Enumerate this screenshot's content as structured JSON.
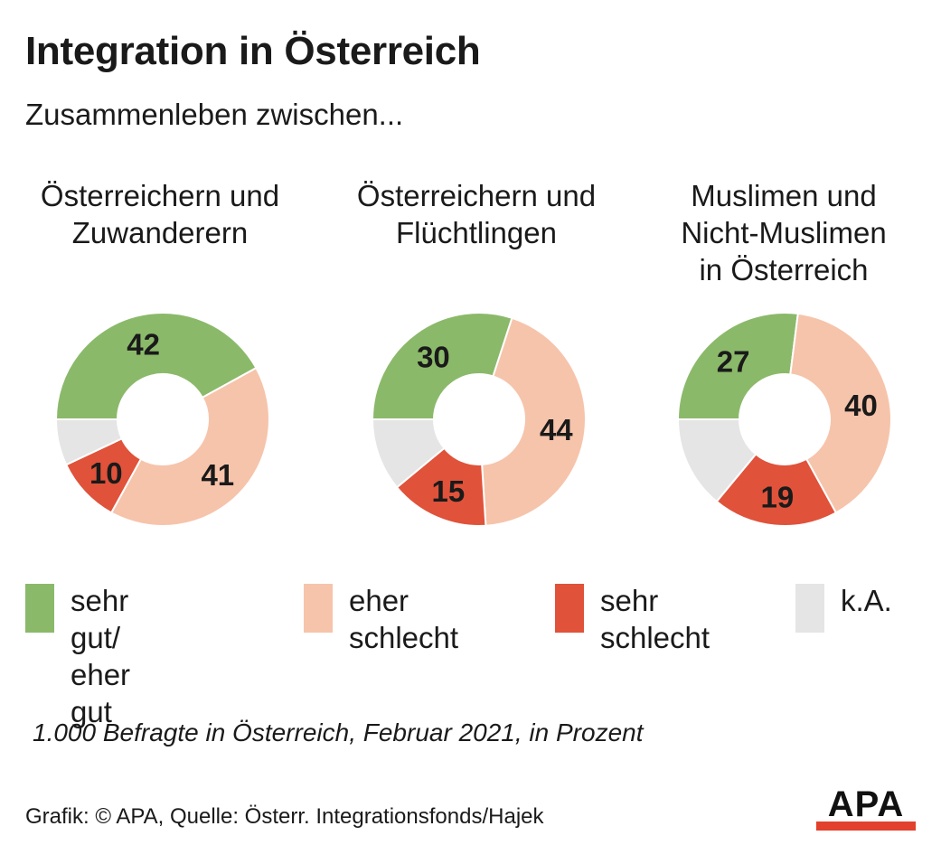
{
  "title": "Integration in Österreich",
  "subtitle": "Zusammenleben zwischen...",
  "colors": {
    "sehr_gut": "#8bb96a",
    "eher_schlecht": "#f6c4ab",
    "sehr_schlecht": "#e0523a",
    "ka": "#e5e5e5"
  },
  "legend": [
    {
      "label": "sehr gut/\neher gut",
      "color": "#8bb96a"
    },
    {
      "label": "eher\nschlecht",
      "color": "#f6c4ab"
    },
    {
      "label": "sehr\nschlecht",
      "color": "#e0523a"
    },
    {
      "label": "k.A.",
      "color": "#e5e5e5"
    }
  ],
  "chart_data": [
    {
      "type": "pie",
      "title": "Österreichern und\nZuwanderern",
      "categories": [
        "sehr gut/ eher gut",
        "eher schlecht",
        "sehr schlecht",
        "k.A."
      ],
      "values": [
        42,
        41,
        10,
        7
      ],
      "labels": [
        "42",
        "41",
        "10",
        ""
      ]
    },
    {
      "type": "pie",
      "title": "Österreichern und\nFlüchtlingen",
      "categories": [
        "sehr gut/ eher gut",
        "eher schlecht",
        "sehr schlecht",
        "k.A."
      ],
      "values": [
        30,
        44,
        15,
        11
      ],
      "labels": [
        "30",
        "44",
        "15",
        ""
      ]
    },
    {
      "type": "pie",
      "title": "Muslimen und\nNicht-Muslimen\nin Österreich",
      "categories": [
        "sehr gut/ eher gut",
        "eher schlecht",
        "sehr schlecht",
        "k.A."
      ],
      "values": [
        27,
        40,
        19,
        14
      ],
      "labels": [
        "27",
        "40",
        "19",
        ""
      ]
    }
  ],
  "note": "1.000 Befragte in Österreich, Februar 2021, in Prozent",
  "source": "Grafik: © APA, Quelle: Österr. Integrationsfonds/Hajek",
  "logo": "APA"
}
